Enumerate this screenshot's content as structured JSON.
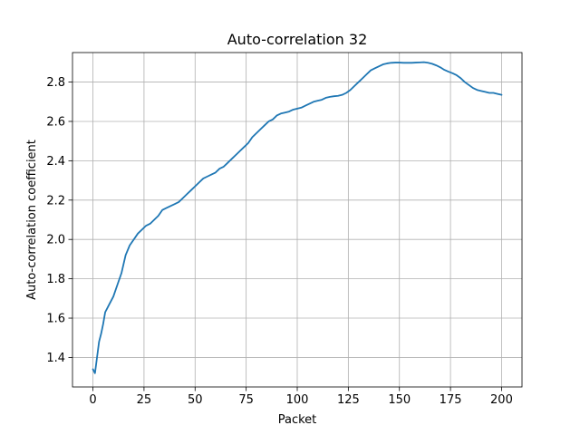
{
  "chart_data": {
    "type": "line",
    "title": "Auto-correlation 32",
    "xlabel": "Packet",
    "ylabel": "Auto-correlation coefficient",
    "xlim": [
      -10,
      210
    ],
    "ylim": [
      1.25,
      2.95
    ],
    "xticks": [
      0,
      25,
      50,
      75,
      100,
      125,
      150,
      175,
      200
    ],
    "yticks": [
      1.4,
      1.6,
      1.8,
      2.0,
      2.2,
      2.4,
      2.6,
      2.8
    ],
    "xtick_labels": [
      "0",
      "25",
      "50",
      "75",
      "100",
      "125",
      "150",
      "175",
      "200"
    ],
    "ytick_labels": [
      "1.4",
      "1.6",
      "1.8",
      "2.0",
      "2.2",
      "2.4",
      "2.6",
      "2.8"
    ],
    "grid": true,
    "colors": {
      "line": "#1f77b4",
      "grid": "#b0b0b0",
      "axes": "#000000"
    },
    "series": [
      {
        "x": [
          0,
          1,
          2,
          3,
          4,
          5,
          6,
          7,
          8,
          10,
          12,
          14,
          16,
          18,
          20,
          22,
          24,
          26,
          28,
          30,
          32,
          34,
          36,
          38,
          40,
          42,
          44,
          46,
          48,
          50,
          52,
          54,
          56,
          58,
          60,
          62,
          64,
          66,
          68,
          70,
          72,
          74,
          76,
          78,
          80,
          82,
          84,
          86,
          88,
          90,
          92,
          94,
          96,
          98,
          100,
          102,
          104,
          106,
          108,
          110,
          112,
          114,
          116,
          118,
          120,
          122,
          124,
          126,
          128,
          130,
          132,
          134,
          136,
          138,
          140,
          142,
          144,
          146,
          148,
          150,
          152,
          154,
          156,
          158,
          160,
          162,
          164,
          166,
          168,
          170,
          172,
          174,
          176,
          178,
          180,
          182,
          184,
          186,
          188,
          190,
          192,
          194,
          196,
          198,
          200
        ],
        "y": [
          1.34,
          1.32,
          1.4,
          1.48,
          1.52,
          1.57,
          1.63,
          1.65,
          1.67,
          1.71,
          1.77,
          1.83,
          1.92,
          1.97,
          2.0,
          2.03,
          2.05,
          2.07,
          2.08,
          2.1,
          2.12,
          2.15,
          2.16,
          2.17,
          2.18,
          2.19,
          2.21,
          2.23,
          2.25,
          2.27,
          2.29,
          2.31,
          2.32,
          2.33,
          2.34,
          2.36,
          2.37,
          2.39,
          2.41,
          2.43,
          2.45,
          2.47,
          2.49,
          2.52,
          2.54,
          2.56,
          2.58,
          2.6,
          2.61,
          2.63,
          2.64,
          2.645,
          2.65,
          2.66,
          2.665,
          2.67,
          2.68,
          2.69,
          2.7,
          2.705,
          2.71,
          2.72,
          2.725,
          2.728,
          2.73,
          2.735,
          2.745,
          2.76,
          2.78,
          2.8,
          2.82,
          2.84,
          2.86,
          2.87,
          2.88,
          2.89,
          2.895,
          2.898,
          2.899,
          2.899,
          2.898,
          2.898,
          2.898,
          2.899,
          2.9,
          2.901,
          2.898,
          2.893,
          2.885,
          2.875,
          2.862,
          2.853,
          2.845,
          2.835,
          2.82,
          2.8,
          2.785,
          2.77,
          2.76,
          2.755,
          2.75,
          2.745,
          2.745,
          2.74,
          2.735
        ]
      }
    ]
  }
}
